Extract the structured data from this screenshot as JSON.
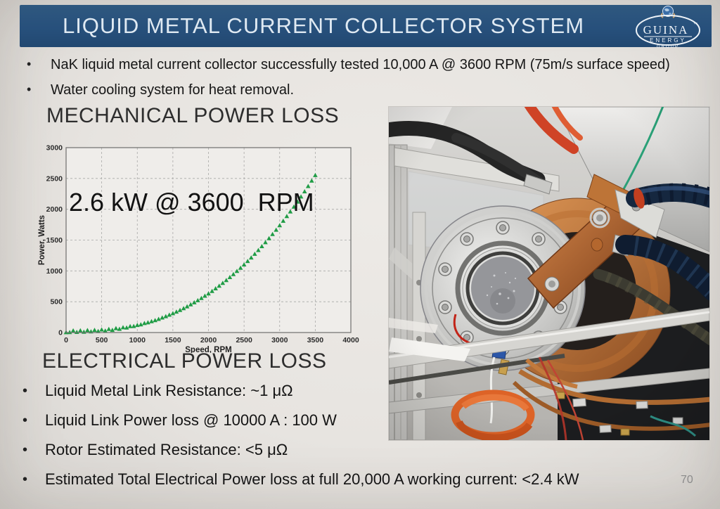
{
  "slide": {
    "title": "LIQUID METAL CURRENT COLLECTOR SYSTEM",
    "page_number": "70",
    "logo": {
      "brand": "GUINA",
      "tm": "™",
      "line2": "ENERGY",
      "line3": "GROUP"
    },
    "top_bullets": [
      "NaK liquid metal current collector successfully tested 10,000 A @ 3600 RPM (75m/s surface speed)",
      "Water cooling system for heat removal."
    ],
    "mechanical_heading": "MECHANICAL POWER LOSS",
    "electrical_heading": "ELECTRICAL POWER LOSS",
    "electrical_bullets": [
      "Liquid Metal Link Resistance: ~1 μΩ",
      "Liquid Link Power loss @ 10000 A : 100 W",
      "Rotor Estimated Resistance: <5 μΩ",
      "Estimated Total Electrical Power loss at full 20,000 A working current: <2.4 kW"
    ],
    "photo_alt": "Liquid metal current collector test rig: stainless flange with copper rotor drum, copper busbar, cooling hoses and tubing"
  },
  "colors": {
    "banner_blue": "#27507c",
    "title_text": "#dfe9f2",
    "body_text": "#1b1b1b",
    "plot_bg": "#efedea",
    "grid": "#a8a8a6",
    "frame": "#6f6f6d",
    "series_green": "#1f9c45",
    "page_number_gray": "#8b8b8b"
  },
  "chart_data": {
    "type": "scatter",
    "marker": "triangle-up",
    "series_color": "#1f9c45",
    "title": "",
    "annotation": "2.6 kW @ 3600  RPM",
    "xlabel": "Speed, RPM",
    "ylabel": "Power, Watts",
    "xlim": [
      0,
      4000
    ],
    "ylim": [
      0,
      3000
    ],
    "x_ticks": [
      0,
      500,
      1000,
      1500,
      2000,
      2500,
      3000,
      3500,
      4000
    ],
    "y_ticks": [
      0,
      500,
      1000,
      1500,
      2000,
      2500,
      3000
    ],
    "grid": true,
    "legend": false,
    "x": [
      0,
      50,
      100,
      150,
      200,
      250,
      300,
      350,
      400,
      450,
      500,
      550,
      600,
      650,
      700,
      750,
      800,
      850,
      900,
      950,
      1000,
      1050,
      1100,
      1150,
      1200,
      1250,
      1300,
      1350,
      1400,
      1450,
      1500,
      1550,
      1600,
      1650,
      1700,
      1750,
      1800,
      1850,
      1900,
      1950,
      2000,
      2050,
      2100,
      2150,
      2200,
      2250,
      2300,
      2350,
      2400,
      2450,
      2500,
      2550,
      2600,
      2650,
      2700,
      2750,
      2800,
      2850,
      2900,
      2950,
      3000,
      3050,
      3100,
      3150,
      3200,
      3250,
      3300,
      3350,
      3400,
      3450,
      3500
    ],
    "y": [
      0,
      2,
      28,
      4,
      30,
      8,
      34,
      12,
      38,
      18,
      44,
      26,
      52,
      38,
      66,
      55,
      80,
      75,
      98,
      100,
      118,
      128,
      148,
      160,
      178,
      196,
      216,
      238,
      260,
      284,
      308,
      334,
      362,
      390,
      420,
      452,
      485,
      519,
      555,
      592,
      630,
      670,
      712,
      755,
      800,
      846,
      894,
      943,
      994,
      1046,
      1100,
      1156,
      1213,
      1272,
      1333,
      1396,
      1460,
      1526,
      1594,
      1663,
      1735,
      1808,
      1883,
      1960,
      2038,
      2119,
      2201,
      2286,
      2372,
      2460,
      2550
    ]
  }
}
